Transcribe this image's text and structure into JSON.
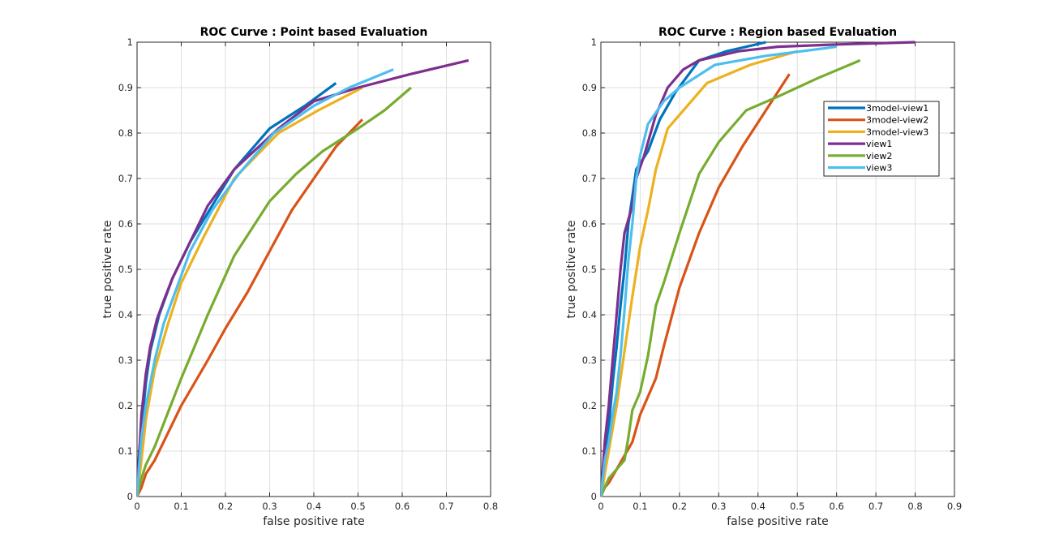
{
  "chart_data": [
    {
      "type": "line",
      "title": "ROC Curve : Point based Evaluation",
      "xlabel": "false positive rate",
      "ylabel": "true positive rate",
      "xlim": [
        0,
        0.8
      ],
      "ylim": [
        0,
        1
      ],
      "xticks": [
        "0",
        "0.1",
        "0.2",
        "0.3",
        "0.4",
        "0.5",
        "0.6",
        "0.7",
        "0.8"
      ],
      "yticks": [
        "0",
        "0.1",
        "0.2",
        "0.3",
        "0.4",
        "0.5",
        "0.6",
        "0.7",
        "0.8",
        "0.9",
        "1"
      ],
      "grid": true,
      "legend": null,
      "series": [
        {
          "name": "3model-view1",
          "color": "#0072BD",
          "points": [
            [
              0,
              0
            ],
            [
              0.005,
              0.1
            ],
            [
              0.01,
              0.15
            ],
            [
              0.02,
              0.25
            ],
            [
              0.03,
              0.32
            ],
            [
              0.05,
              0.4
            ],
            [
              0.08,
              0.48
            ],
            [
              0.12,
              0.56
            ],
            [
              0.17,
              0.64
            ],
            [
              0.22,
              0.72
            ],
            [
              0.3,
              0.81
            ],
            [
              0.38,
              0.86
            ],
            [
              0.45,
              0.91
            ]
          ]
        },
        {
          "name": "3model-view2",
          "color": "#D95319",
          "points": [
            [
              0,
              0
            ],
            [
              0.01,
              0.02
            ],
            [
              0.02,
              0.05
            ],
            [
              0.04,
              0.08
            ],
            [
              0.06,
              0.12
            ],
            [
              0.08,
              0.16
            ],
            [
              0.1,
              0.2
            ],
            [
              0.13,
              0.25
            ],
            [
              0.16,
              0.3
            ],
            [
              0.2,
              0.37
            ],
            [
              0.25,
              0.45
            ],
            [
              0.3,
              0.54
            ],
            [
              0.35,
              0.63
            ],
            [
              0.4,
              0.7
            ],
            [
              0.45,
              0.77
            ],
            [
              0.51,
              0.83
            ]
          ]
        },
        {
          "name": "3model-view3",
          "color": "#EDB120",
          "points": [
            [
              0,
              0
            ],
            [
              0.01,
              0.08
            ],
            [
              0.02,
              0.17
            ],
            [
              0.04,
              0.28
            ],
            [
              0.07,
              0.38
            ],
            [
              0.1,
              0.47
            ],
            [
              0.15,
              0.57
            ],
            [
              0.22,
              0.7
            ],
            [
              0.32,
              0.8
            ],
            [
              0.41,
              0.85
            ],
            [
              0.51,
              0.9
            ]
          ]
        },
        {
          "name": "view1",
          "color": "#7E2F8E",
          "points": [
            [
              0,
              0
            ],
            [
              0.005,
              0.09
            ],
            [
              0.01,
              0.18
            ],
            [
              0.02,
              0.27
            ],
            [
              0.03,
              0.33
            ],
            [
              0.045,
              0.39
            ],
            [
              0.06,
              0.43
            ],
            [
              0.08,
              0.48
            ],
            [
              0.11,
              0.54
            ],
            [
              0.16,
              0.64
            ],
            [
              0.22,
              0.72
            ],
            [
              0.32,
              0.81
            ],
            [
              0.4,
              0.87
            ],
            [
              0.5,
              0.9
            ],
            [
              0.62,
              0.93
            ],
            [
              0.75,
              0.96
            ]
          ]
        },
        {
          "name": "view2",
          "color": "#77AC30",
          "points": [
            [
              0,
              0
            ],
            [
              0.01,
              0.04
            ],
            [
              0.02,
              0.07
            ],
            [
              0.04,
              0.11
            ],
            [
              0.06,
              0.16
            ],
            [
              0.08,
              0.21
            ],
            [
              0.1,
              0.26
            ],
            [
              0.13,
              0.33
            ],
            [
              0.16,
              0.4
            ],
            [
              0.22,
              0.53
            ],
            [
              0.3,
              0.65
            ],
            [
              0.36,
              0.71
            ],
            [
              0.42,
              0.76
            ],
            [
              0.5,
              0.81
            ],
            [
              0.56,
              0.85
            ],
            [
              0.62,
              0.9
            ]
          ]
        },
        {
          "name": "view3",
          "color": "#4DBEEE",
          "points": [
            [
              0,
              0
            ],
            [
              0.005,
              0.07
            ],
            [
              0.01,
              0.13
            ],
            [
              0.02,
              0.2
            ],
            [
              0.04,
              0.3
            ],
            [
              0.06,
              0.38
            ],
            [
              0.09,
              0.46
            ],
            [
              0.12,
              0.54
            ],
            [
              0.17,
              0.63
            ],
            [
              0.23,
              0.71
            ],
            [
              0.31,
              0.8
            ],
            [
              0.4,
              0.86
            ],
            [
              0.48,
              0.9
            ],
            [
              0.58,
              0.94
            ]
          ]
        }
      ]
    },
    {
      "type": "line",
      "title": "ROC Curve : Region based Evaluation",
      "xlabel": "false positive rate",
      "ylabel": "true positive rate",
      "xlim": [
        0,
        0.9
      ],
      "ylim": [
        0,
        1
      ],
      "xticks": [
        "0",
        "0.1",
        "0.2",
        "0.3",
        "0.4",
        "0.5",
        "0.6",
        "0.7",
        "0.8",
        "0.9"
      ],
      "yticks": [
        "0",
        "0.1",
        "0.2",
        "0.3",
        "0.4",
        "0.5",
        "0.6",
        "0.7",
        "0.8",
        "0.9",
        "1"
      ],
      "grid": true,
      "legend": "top-right",
      "series": [
        {
          "name": "3model-view1",
          "color": "#0072BD",
          "points": [
            [
              0,
              0
            ],
            [
              0.005,
              0.05
            ],
            [
              0.01,
              0.1
            ],
            [
              0.02,
              0.15
            ],
            [
              0.03,
              0.25
            ],
            [
              0.04,
              0.33
            ],
            [
              0.05,
              0.42
            ],
            [
              0.06,
              0.5
            ],
            [
              0.07,
              0.6
            ],
            [
              0.08,
              0.66
            ],
            [
              0.09,
              0.72
            ],
            [
              0.12,
              0.76
            ],
            [
              0.15,
              0.83
            ],
            [
              0.19,
              0.89
            ],
            [
              0.25,
              0.96
            ],
            [
              0.32,
              0.98
            ],
            [
              0.42,
              1.0
            ]
          ]
        },
        {
          "name": "3model-view2",
          "color": "#D95319",
          "points": [
            [
              0,
              0
            ],
            [
              0.01,
              0.02
            ],
            [
              0.02,
              0.03
            ],
            [
              0.04,
              0.06
            ],
            [
              0.06,
              0.09
            ],
            [
              0.08,
              0.12
            ],
            [
              0.1,
              0.18
            ],
            [
              0.12,
              0.22
            ],
            [
              0.14,
              0.26
            ],
            [
              0.16,
              0.33
            ],
            [
              0.2,
              0.46
            ],
            [
              0.25,
              0.58
            ],
            [
              0.3,
              0.68
            ],
            [
              0.36,
              0.77
            ],
            [
              0.42,
              0.85
            ],
            [
              0.48,
              0.93
            ]
          ]
        },
        {
          "name": "3model-view3",
          "color": "#EDB120",
          "points": [
            [
              0,
              0
            ],
            [
              0.005,
              0.02
            ],
            [
              0.01,
              0.05
            ],
            [
              0.02,
              0.1
            ],
            [
              0.04,
              0.2
            ],
            [
              0.06,
              0.32
            ],
            [
              0.08,
              0.44
            ],
            [
              0.1,
              0.55
            ],
            [
              0.12,
              0.63
            ],
            [
              0.14,
              0.72
            ],
            [
              0.17,
              0.81
            ],
            [
              0.22,
              0.86
            ],
            [
              0.27,
              0.91
            ],
            [
              0.38,
              0.95
            ],
            [
              0.5,
              0.98
            ]
          ]
        },
        {
          "name": "view1",
          "color": "#7E2F8E",
          "points": [
            [
              0,
              0
            ],
            [
              0.005,
              0.06
            ],
            [
              0.01,
              0.12
            ],
            [
              0.02,
              0.2
            ],
            [
              0.03,
              0.3
            ],
            [
              0.04,
              0.4
            ],
            [
              0.05,
              0.5
            ],
            [
              0.06,
              0.58
            ],
            [
              0.08,
              0.64
            ],
            [
              0.09,
              0.7
            ],
            [
              0.11,
              0.75
            ],
            [
              0.14,
              0.84
            ],
            [
              0.17,
              0.9
            ],
            [
              0.21,
              0.94
            ],
            [
              0.25,
              0.96
            ],
            [
              0.35,
              0.98
            ],
            [
              0.45,
              0.99
            ],
            [
              0.6,
              0.995
            ],
            [
              0.8,
              1.0
            ]
          ]
        },
        {
          "name": "view2",
          "color": "#77AC30",
          "points": [
            [
              0,
              0
            ],
            [
              0.01,
              0.02
            ],
            [
              0.02,
              0.04
            ],
            [
              0.04,
              0.06
            ],
            [
              0.06,
              0.08
            ],
            [
              0.07,
              0.13
            ],
            [
              0.08,
              0.19
            ],
            [
              0.1,
              0.23
            ],
            [
              0.12,
              0.31
            ],
            [
              0.14,
              0.42
            ],
            [
              0.16,
              0.47
            ],
            [
              0.2,
              0.58
            ],
            [
              0.25,
              0.71
            ],
            [
              0.3,
              0.78
            ],
            [
              0.37,
              0.85
            ],
            [
              0.45,
              0.88
            ],
            [
              0.55,
              0.92
            ],
            [
              0.66,
              0.96
            ]
          ]
        },
        {
          "name": "view3",
          "color": "#4DBEEE",
          "points": [
            [
              0,
              0
            ],
            [
              0.005,
              0.04
            ],
            [
              0.01,
              0.08
            ],
            [
              0.02,
              0.12
            ],
            [
              0.03,
              0.18
            ],
            [
              0.04,
              0.23
            ],
            [
              0.05,
              0.31
            ],
            [
              0.06,
              0.41
            ],
            [
              0.07,
              0.52
            ],
            [
              0.08,
              0.6
            ],
            [
              0.09,
              0.7
            ],
            [
              0.1,
              0.75
            ],
            [
              0.12,
              0.82
            ],
            [
              0.16,
              0.87
            ],
            [
              0.2,
              0.9
            ],
            [
              0.29,
              0.95
            ],
            [
              0.42,
              0.97
            ],
            [
              0.6,
              0.99
            ]
          ]
        }
      ]
    }
  ]
}
